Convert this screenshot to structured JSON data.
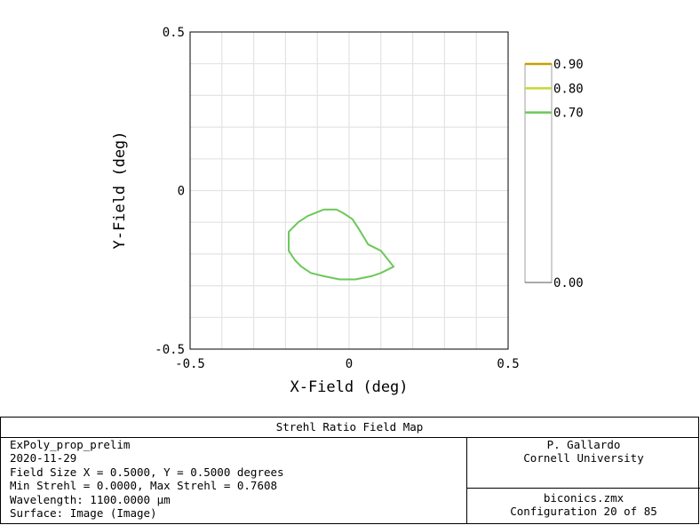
{
  "chart_data": {
    "type": "contour",
    "title": "Strehl Ratio Field Map",
    "xlabel": "X-Field (deg)",
    "ylabel": "Y-Field (deg)",
    "xlim": [
      -0.5,
      0.5
    ],
    "ylim": [
      -0.5,
      0.5
    ],
    "x_ticks": [
      "-0.5",
      "0",
      "0.5"
    ],
    "y_ticks": [
      "0.5",
      "0",
      "-0.5"
    ],
    "grid": true,
    "legend": {
      "placement": "right",
      "levels": [
        {
          "label": "0.90",
          "value": 0.9,
          "color": "#c8a000"
        },
        {
          "label": "0.80",
          "value": 0.8,
          "color": "#c8d832"
        },
        {
          "label": "0.70",
          "value": 0.7,
          "color": "#6cc85a"
        },
        {
          "label": "0.00",
          "value": 0.0,
          "color": "#555555"
        }
      ]
    },
    "contours": [
      {
        "level": 0.7,
        "color": "#6cc85a",
        "points": [
          [
            -0.08,
            -0.06
          ],
          [
            -0.04,
            -0.06
          ],
          [
            -0.02,
            -0.07
          ],
          [
            0.01,
            -0.09
          ],
          [
            0.03,
            -0.12
          ],
          [
            0.06,
            -0.17
          ],
          [
            0.1,
            -0.19
          ],
          [
            0.14,
            -0.24
          ],
          [
            0.1,
            -0.26
          ],
          [
            0.07,
            -0.27
          ],
          [
            0.02,
            -0.28
          ],
          [
            -0.03,
            -0.28
          ],
          [
            -0.08,
            -0.27
          ],
          [
            -0.12,
            -0.26
          ],
          [
            -0.15,
            -0.24
          ],
          [
            -0.17,
            -0.22
          ],
          [
            -0.19,
            -0.19
          ],
          [
            -0.19,
            -0.13
          ],
          [
            -0.16,
            -0.1
          ],
          [
            -0.13,
            -0.08
          ],
          [
            -0.08,
            -0.06
          ]
        ]
      }
    ]
  },
  "footer": {
    "title": "Strehl Ratio Field Map",
    "left_lines": [
      "ExPoly_prop_prelim",
      "2020-11-29",
      "Field Size X = 0.5000, Y = 0.5000 degrees",
      "Min Strehl = 0.0000, Max Strehl = 0.7608",
      "Wavelength: 1100.0000 µm",
      "Surface: Image (Image)"
    ],
    "author": "P. Gallardo",
    "institution": "Cornell University",
    "file": "biconics.zmx",
    "configuration": "Configuration 20 of 85"
  }
}
